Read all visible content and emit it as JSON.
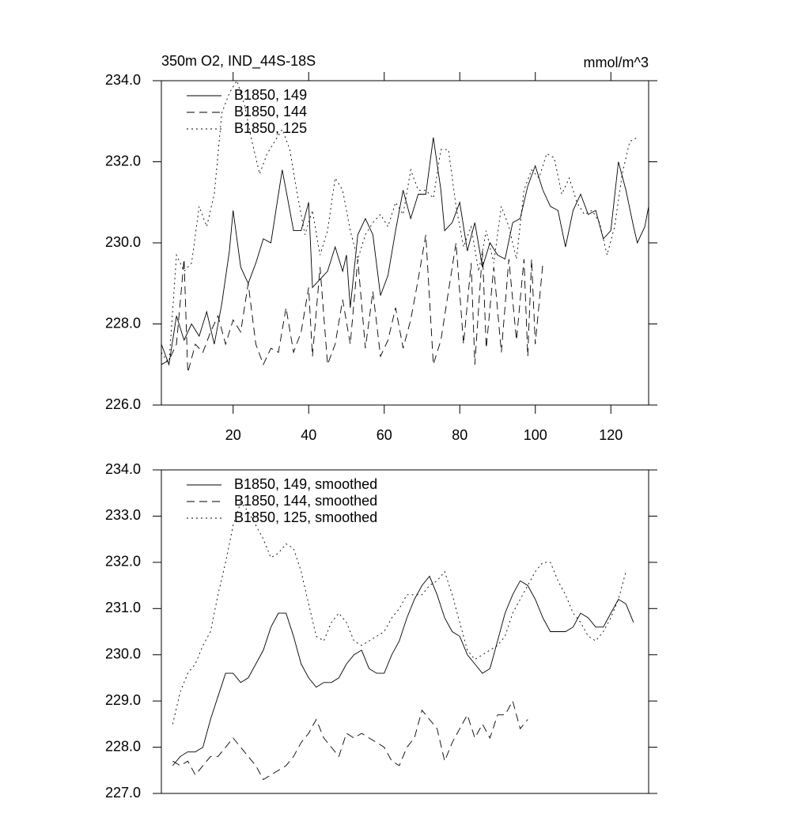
{
  "chart_data": [
    {
      "type": "line",
      "title": "350m O2, IND_44S-18S",
      "units": "mmol/m^3",
      "xlim": [
        1,
        130
      ],
      "xticks": [
        20,
        40,
        60,
        80,
        100,
        120
      ],
      "ylim": [
        226,
        234
      ],
      "yticks": [
        {
          "value": 226,
          "label": "226.0"
        },
        {
          "value": 228,
          "label": "228.0"
        },
        {
          "value": 230,
          "label": "230.0"
        },
        {
          "value": 232,
          "label": "232.0"
        },
        {
          "value": 234,
          "label": "234.0"
        }
      ],
      "series": [
        {
          "name": "B1850, 149",
          "color": "#000000",
          "dash": "solid",
          "x": [
            1,
            3,
            5,
            7,
            9,
            11,
            13,
            15,
            17,
            19,
            20,
            22,
            24,
            26,
            28,
            30,
            32,
            33,
            35,
            36,
            38,
            40,
            41,
            43,
            45,
            47,
            49,
            50,
            51,
            53,
            55,
            57,
            59,
            61,
            63,
            65,
            67,
            69,
            71,
            73,
            75,
            76,
            78,
            80,
            82,
            84,
            86,
            88,
            90,
            92,
            94,
            96,
            98,
            100,
            102,
            104,
            106,
            108,
            110,
            112,
            114,
            116,
            118,
            120,
            122,
            124,
            126,
            127,
            129,
            130
          ],
          "values": [
            227.5,
            227.0,
            228.2,
            227.6,
            228.0,
            227.7,
            228.3,
            227.5,
            228.5,
            229.8,
            230.8,
            229.4,
            229.0,
            229.5,
            230.1,
            230.0,
            231.2,
            231.8,
            230.8,
            230.3,
            230.3,
            231.0,
            228.9,
            229.1,
            229.3,
            229.9,
            229.3,
            229.7,
            228.4,
            230.2,
            230.6,
            230.2,
            228.7,
            229.2,
            230.3,
            231.3,
            230.6,
            231.2,
            231.2,
            232.6,
            231.3,
            230.3,
            230.5,
            231.0,
            229.8,
            230.5,
            229.4,
            230.0,
            229.7,
            229.6,
            230.5,
            230.6,
            231.4,
            231.9,
            231.3,
            230.9,
            230.8,
            229.9,
            230.8,
            231.2,
            230.7,
            230.8,
            230.1,
            230.3,
            232.0,
            231.3,
            230.4,
            230.0,
            230.4,
            230.9
          ]
        },
        {
          "name": "B1850, 144",
          "color": "#000000",
          "dash": "dashed",
          "x": [
            1,
            3,
            5,
            7,
            8,
            10,
            12,
            14,
            16,
            18,
            20,
            22,
            24,
            26,
            28,
            30,
            32,
            34,
            36,
            38,
            40,
            41,
            43,
            45,
            47,
            49,
            51,
            53,
            55,
            57,
            59,
            61,
            63,
            65,
            67,
            69,
            71,
            73,
            75,
            77,
            79,
            81,
            83,
            84,
            86,
            87,
            89,
            91,
            93,
            95,
            97,
            98,
            99,
            100,
            102
          ],
          "values": [
            227.0,
            227.1,
            227.5,
            229.6,
            226.8,
            227.5,
            227.3,
            227.8,
            228.2,
            227.5,
            228.1,
            227.8,
            229.0,
            227.5,
            227.0,
            227.4,
            227.3,
            228.4,
            227.3,
            227.8,
            228.9,
            227.2,
            229.4,
            227.0,
            227.5,
            228.6,
            227.5,
            229.6,
            227.4,
            228.8,
            227.2,
            227.6,
            228.4,
            227.4,
            228.1,
            229.1,
            230.2,
            227.0,
            227.6,
            228.8,
            230.0,
            227.5,
            229.5,
            227.0,
            229.8,
            227.4,
            229.4,
            227.3,
            229.6,
            227.6,
            229.6,
            227.2,
            229.6,
            227.5,
            229.5
          ]
        },
        {
          "name": "B1850, 125",
          "color": "#000000",
          "dash": "dotted",
          "x": [
            1,
            3,
            5,
            7,
            9,
            11,
            13,
            15,
            17,
            19,
            21,
            23,
            25,
            27,
            29,
            31,
            33,
            35,
            37,
            39,
            41,
            43,
            45,
            47,
            49,
            51,
            53,
            55,
            57,
            59,
            61,
            63,
            65,
            67,
            69,
            71,
            73,
            75,
            77,
            79,
            81,
            83,
            85,
            87,
            89,
            91,
            93,
            95,
            97,
            99,
            101,
            103,
            105,
            107,
            109,
            111,
            113,
            115,
            117,
            119,
            121,
            123,
            125,
            127
          ],
          "values": [
            227.3,
            227.0,
            229.7,
            229.3,
            229.5,
            230.9,
            230.4,
            231.2,
            233.2,
            233.7,
            234.0,
            233.4,
            232.5,
            231.7,
            232.2,
            232.5,
            232.8,
            232.3,
            231.2,
            230.2,
            230.8,
            229.7,
            230.3,
            231.6,
            231.3,
            230.3,
            229.6,
            230.2,
            230.5,
            230.7,
            230.4,
            231.0,
            230.7,
            231.8,
            231.3,
            231.3,
            231.1,
            232.3,
            232.3,
            230.9,
            229.9,
            230.4,
            229.3,
            230.3,
            229.5,
            230.9,
            230.4,
            229.6,
            231.3,
            231.8,
            231.6,
            232.2,
            232.1,
            231.2,
            231.6,
            231.0,
            230.7,
            230.8,
            230.5,
            229.7,
            230.4,
            231.7,
            232.5,
            232.6
          ]
        }
      ]
    },
    {
      "type": "line",
      "xlim": [
        1,
        130
      ],
      "ylim": [
        227,
        234
      ],
      "yticks": [
        {
          "value": 227,
          "label": "227.0"
        },
        {
          "value": 228,
          "label": "228.0"
        },
        {
          "value": 229,
          "label": "229.0"
        },
        {
          "value": 230,
          "label": "230.0"
        },
        {
          "value": 231,
          "label": "231.0"
        },
        {
          "value": 232,
          "label": "232.0"
        },
        {
          "value": 233,
          "label": "233.0"
        },
        {
          "value": 234,
          "label": "234.0"
        }
      ],
      "series": [
        {
          "name": "B1850, 149, smoothed",
          "color": "#000000",
          "dash": "solid",
          "x": [
            4,
            6,
            8,
            10,
            12,
            14,
            16,
            18,
            20,
            22,
            24,
            26,
            28,
            30,
            32,
            34,
            36,
            38,
            40,
            42,
            44,
            46,
            48,
            50,
            52,
            54,
            56,
            58,
            60,
            62,
            64,
            66,
            68,
            70,
            72,
            74,
            76,
            78,
            80,
            82,
            84,
            86,
            88,
            90,
            92,
            94,
            96,
            98,
            100,
            102,
            104,
            106,
            108,
            110,
            112,
            114,
            116,
            118,
            120,
            122,
            124,
            126
          ],
          "values": [
            227.6,
            227.8,
            227.9,
            227.9,
            228.0,
            228.6,
            229.1,
            229.6,
            229.6,
            229.4,
            229.5,
            229.8,
            230.1,
            230.6,
            230.9,
            230.9,
            230.4,
            229.8,
            229.5,
            229.3,
            229.4,
            229.4,
            229.5,
            229.8,
            230.0,
            230.1,
            229.7,
            229.6,
            229.6,
            230.0,
            230.3,
            230.8,
            231.2,
            231.5,
            231.7,
            231.3,
            230.8,
            230.5,
            230.4,
            230.0,
            229.8,
            229.6,
            229.7,
            230.3,
            230.9,
            231.3,
            231.6,
            231.5,
            231.2,
            230.8,
            230.5,
            230.5,
            230.5,
            230.6,
            230.9,
            230.8,
            230.6,
            230.6,
            230.9,
            231.2,
            231.1,
            230.7
          ]
        },
        {
          "name": "B1850, 144, smoothed",
          "color": "#000000",
          "dash": "dashed",
          "x": [
            4,
            6,
            8,
            10,
            12,
            14,
            16,
            18,
            20,
            22,
            24,
            26,
            28,
            30,
            32,
            34,
            36,
            38,
            40,
            42,
            44,
            46,
            48,
            50,
            52,
            54,
            56,
            58,
            60,
            62,
            64,
            66,
            68,
            70,
            72,
            74,
            76,
            78,
            80,
            82,
            84,
            86,
            88,
            90,
            92,
            94,
            96,
            98
          ],
          "values": [
            227.7,
            227.6,
            227.7,
            227.4,
            227.6,
            227.8,
            227.8,
            228.0,
            228.2,
            228.0,
            227.8,
            227.6,
            227.3,
            227.4,
            227.5,
            227.6,
            227.8,
            228.1,
            228.3,
            228.6,
            228.2,
            228.0,
            227.8,
            228.3,
            228.2,
            228.3,
            228.2,
            228.1,
            228.0,
            227.7,
            227.6,
            228.0,
            228.2,
            228.8,
            228.6,
            228.4,
            227.7,
            228.1,
            228.4,
            228.7,
            228.2,
            228.5,
            228.2,
            228.7,
            228.7,
            229.0,
            228.4,
            228.6
          ]
        },
        {
          "name": "B1850, 125, smoothed",
          "color": "#000000",
          "dash": "dotted",
          "x": [
            4,
            6,
            8,
            10,
            12,
            14,
            16,
            18,
            20,
            22,
            24,
            26,
            28,
            30,
            32,
            34,
            36,
            38,
            40,
            42,
            44,
            46,
            48,
            50,
            52,
            54,
            56,
            58,
            60,
            62,
            64,
            66,
            68,
            70,
            72,
            74,
            76,
            78,
            80,
            82,
            84,
            86,
            88,
            90,
            92,
            94,
            96,
            98,
            100,
            102,
            104,
            106,
            108,
            110,
            112,
            114,
            116,
            118,
            120,
            122,
            124
          ],
          "values": [
            228.5,
            229.2,
            229.6,
            229.8,
            230.2,
            230.5,
            231.3,
            232.0,
            232.8,
            233.3,
            233.1,
            232.8,
            232.5,
            232.1,
            232.2,
            232.4,
            232.3,
            231.8,
            231.1,
            230.4,
            230.3,
            230.7,
            230.9,
            230.7,
            230.3,
            230.2,
            230.3,
            230.4,
            230.5,
            230.8,
            231.0,
            231.3,
            231.3,
            231.3,
            231.5,
            231.6,
            231.8,
            231.3,
            230.7,
            230.1,
            229.9,
            230.0,
            230.1,
            230.2,
            230.4,
            230.9,
            231.2,
            231.5,
            231.8,
            232.0,
            232.0,
            231.6,
            231.3,
            230.9,
            230.7,
            230.4,
            230.3,
            230.5,
            230.8,
            231.2,
            231.8
          ]
        }
      ]
    }
  ]
}
